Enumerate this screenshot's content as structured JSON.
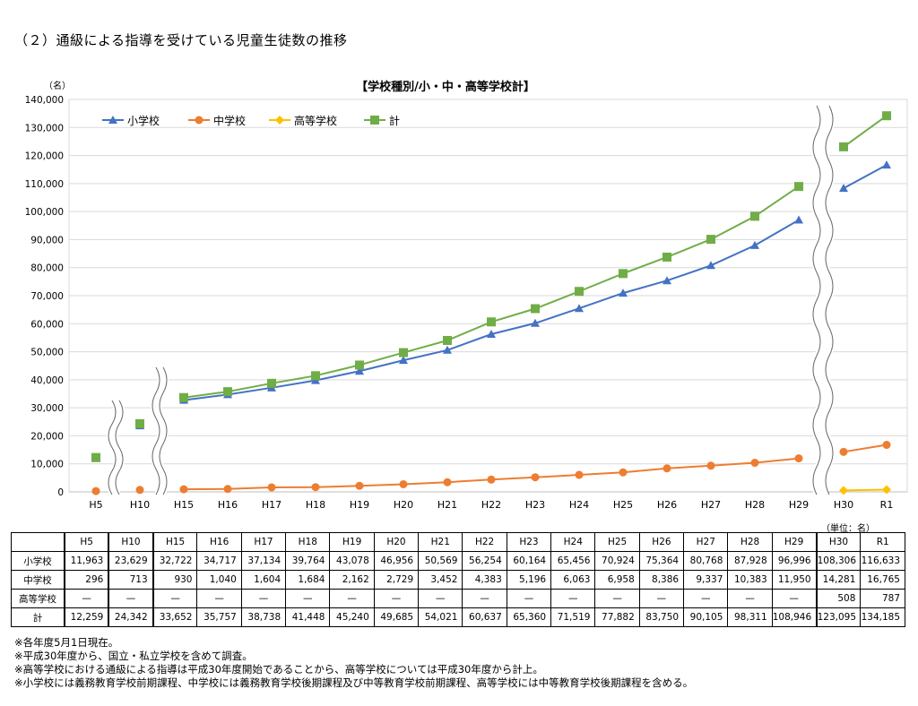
{
  "heading": "（２）通級による指導を受けている児童生徒数の推移",
  "unit_note": "（単位：名）",
  "chart_data": {
    "type": "line",
    "title": "【学校種別/小・中・高等学校計】",
    "ylabel": "（名）",
    "xlabel": "",
    "ylim": [
      0,
      140000
    ],
    "yticks": [
      "0",
      "10,000",
      "20,000",
      "30,000",
      "40,000",
      "50,000",
      "60,000",
      "70,000",
      "80,000",
      "90,000",
      "100,000",
      "110,000",
      "120,000",
      "130,000",
      "140,000"
    ],
    "categories": [
      "H5",
      "H10",
      "H15",
      "H16",
      "H17",
      "H18",
      "H19",
      "H20",
      "H21",
      "H22",
      "H23",
      "H24",
      "H25",
      "H26",
      "H27",
      "H28",
      "H29",
      "H30",
      "R1"
    ],
    "legend_position": "top-left",
    "grid": true,
    "series": [
      {
        "name": "小学校",
        "color": "#4472C4",
        "marker": "triangle",
        "values": [
          11963,
          23629,
          32722,
          34717,
          37134,
          39764,
          43078,
          46956,
          50569,
          56254,
          60164,
          65456,
          70924,
          75364,
          80768,
          87928,
          96996,
          108306,
          116633
        ]
      },
      {
        "name": "中学校",
        "color": "#ED7D31",
        "marker": "circle",
        "values": [
          296,
          713,
          930,
          1040,
          1604,
          1684,
          2162,
          2729,
          3452,
          4383,
          5196,
          6063,
          6958,
          8386,
          9337,
          10383,
          11950,
          14281,
          16765
        ]
      },
      {
        "name": "高等学校",
        "color": "#FFC000",
        "marker": "diamond",
        "values": [
          null,
          null,
          null,
          null,
          null,
          null,
          null,
          null,
          null,
          null,
          null,
          null,
          null,
          null,
          null,
          null,
          null,
          508,
          787
        ]
      },
      {
        "name": "計",
        "color": "#70AD47",
        "marker": "square",
        "values": [
          12259,
          24342,
          33652,
          35757,
          38738,
          41448,
          45240,
          49685,
          54021,
          60637,
          65360,
          71519,
          77882,
          83750,
          90105,
          98311,
          108946,
          123095,
          134185
        ]
      }
    ]
  },
  "table": {
    "columns": [
      "H5",
      "H10",
      "H15",
      "H16",
      "H17",
      "H18",
      "H19",
      "H20",
      "H21",
      "H22",
      "H23",
      "H24",
      "H25",
      "H26",
      "H27",
      "H28",
      "H29",
      "H30",
      "R1"
    ],
    "rows": [
      {
        "label": "小学校",
        "cells": [
          "11,963",
          "23,629",
          "32,722",
          "34,717",
          "37,134",
          "39,764",
          "43,078",
          "46,956",
          "50,569",
          "56,254",
          "60,164",
          "65,456",
          "70,924",
          "75,364",
          "80,768",
          "87,928",
          "96,996",
          "108,306",
          "116,633"
        ]
      },
      {
        "label": "中学校",
        "cells": [
          "296",
          "713",
          "930",
          "1,040",
          "1,604",
          "1,684",
          "2,162",
          "2,729",
          "3,452",
          "4,383",
          "5,196",
          "6,063",
          "6,958",
          "8,386",
          "9,337",
          "10,383",
          "11,950",
          "14,281",
          "16,765"
        ]
      },
      {
        "label": "高等学校",
        "cells": [
          "—",
          "—",
          "—",
          "—",
          "—",
          "—",
          "—",
          "—",
          "—",
          "—",
          "—",
          "—",
          "—",
          "—",
          "—",
          "—",
          "—",
          "508",
          "787"
        ]
      },
      {
        "label": "計",
        "cells": [
          "12,259",
          "24,342",
          "33,652",
          "35,757",
          "38,738",
          "41,448",
          "45,240",
          "49,685",
          "54,021",
          "60,637",
          "65,360",
          "71,519",
          "77,882",
          "83,750",
          "90,105",
          "98,311",
          "108,946",
          "123,095",
          "134,185"
        ]
      }
    ]
  },
  "notes": [
    "※各年度5月1日現在。",
    "※平成30年度から、国立・私立学校を含めて調査。",
    "※高等学校における通級による指導は平成30年度開始であることから、高等学校については平成30年度から計上。",
    "※小学校には義務教育学校前期課程、中学校には義務教育学校後期課程及び中等教育学校前期課程、高等学校には中等教育学校後期課程を含める。"
  ]
}
